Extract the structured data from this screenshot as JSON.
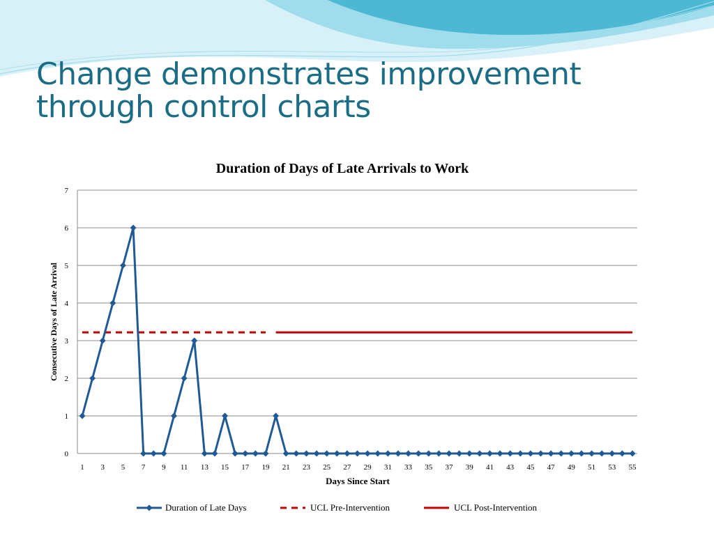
{
  "slide": {
    "title": "Change demonstrates improvement through control charts"
  },
  "colors": {
    "title": "#1a6d84",
    "series_line": "#1f5a94",
    "ucl": "#c00000",
    "gridline": "#8c8c8c",
    "wave_light": "#d8f1f8",
    "wave_mid": "#9fdcec",
    "wave_dark": "#4cb8d4"
  },
  "chart_data": {
    "type": "line",
    "title": "Duration of Days of Late Arrivals to Work",
    "xlabel": "Days Since Start",
    "ylabel": "Consecutive Days of Late Arrival",
    "x": [
      1,
      2,
      3,
      4,
      5,
      6,
      7,
      8,
      9,
      10,
      11,
      12,
      13,
      14,
      15,
      16,
      17,
      18,
      19,
      20,
      21,
      22,
      23,
      24,
      25,
      26,
      27,
      28,
      29,
      30,
      31,
      32,
      33,
      34,
      35,
      36,
      37,
      38,
      39,
      40,
      41,
      42,
      43,
      44,
      45,
      46,
      47,
      48,
      49,
      50,
      51,
      52,
      53,
      54,
      55
    ],
    "x_tick_labels": [
      "1",
      "3",
      "5",
      "7",
      "9",
      "11",
      "13",
      "15",
      "17",
      "19",
      "21",
      "23",
      "25",
      "27",
      "29",
      "31",
      "33",
      "35",
      "37",
      "39",
      "41",
      "43",
      "45",
      "47",
      "49",
      "51",
      "53",
      "55"
    ],
    "y_tick_labels": [
      "0",
      "1",
      "2",
      "3",
      "4",
      "5",
      "6",
      "7"
    ],
    "ylim": [
      0,
      7
    ],
    "grid": true,
    "legend_position": "bottom",
    "series": [
      {
        "name": "Duration of Late Days",
        "style": "line-with-diamond-markers",
        "color": "#1f5a94",
        "values": [
          1,
          2,
          3,
          4,
          5,
          6,
          0,
          0,
          0,
          1,
          2,
          3,
          0,
          0,
          1,
          0,
          0,
          0,
          0,
          1,
          0,
          0,
          0,
          0,
          0,
          0,
          0,
          0,
          0,
          0,
          0,
          0,
          0,
          0,
          0,
          0,
          0,
          0,
          0,
          0,
          0,
          0,
          0,
          0,
          0,
          0,
          0,
          0,
          0,
          0,
          0,
          0,
          0,
          0,
          0
        ]
      },
      {
        "name": "UCL Pre-Intervention",
        "style": "dashed",
        "color": "#c00000",
        "x_range": [
          1,
          19
        ],
        "value": 3.22
      },
      {
        "name": "UCL Post-Intervention",
        "style": "solid",
        "color": "#c00000",
        "x_range": [
          20,
          55
        ],
        "value": 3.22
      }
    ]
  }
}
